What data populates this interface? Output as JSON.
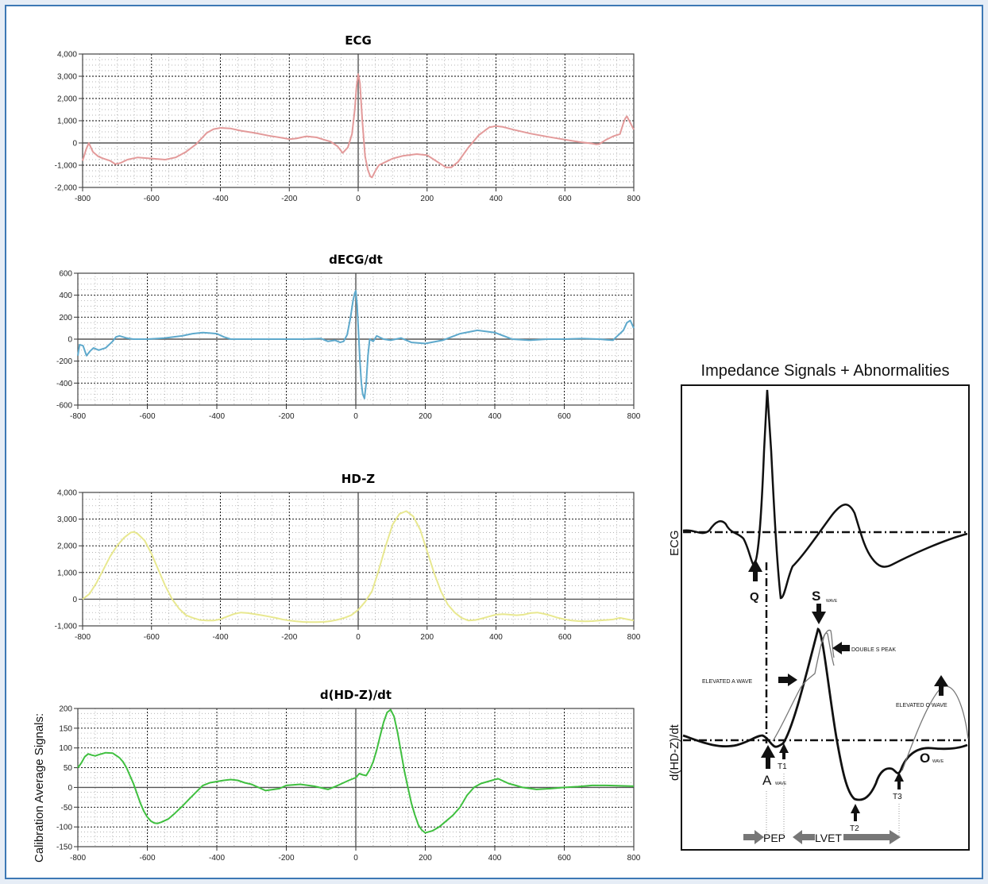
{
  "side_label": "Calibration Average Signals:",
  "colors": {
    "ecg": "#e39a9a",
    "decg": "#5ea9cc",
    "hdz": "#e8e890",
    "dhdz": "#3fbf3f",
    "frame": "#3d78b5"
  },
  "chart_data": [
    {
      "type": "line",
      "title": "ECG",
      "xlim": [
        -800,
        800
      ],
      "ylim": [
        -2000,
        4000
      ],
      "grid": true,
      "xticks": [
        -800,
        -600,
        -400,
        -200,
        0,
        200,
        400,
        600,
        800
      ],
      "xtick_labels": [
        "-800",
        "-600",
        "-400",
        "-200",
        "0",
        "200",
        "400",
        "600",
        "800"
      ],
      "yticks": [
        4000,
        3000,
        2000,
        1000,
        0,
        -1000,
        -2000
      ],
      "ytick_labels": [
        "4,000",
        "3,000",
        "2,000",
        "1,000",
        "0",
        "-1,000",
        "-2,000"
      ],
      "series": [
        {
          "color_key": "ecg",
          "x": [
            -800,
            -790,
            -782,
            -770,
            -755,
            -740,
            -720,
            -705,
            -690,
            -670,
            -640,
            -600,
            -560,
            -530,
            -500,
            -470,
            -440,
            -420,
            -400,
            -370,
            -340,
            -300,
            -260,
            -220,
            -200,
            -180,
            -150,
            -120,
            -100,
            -80,
            -60,
            -45,
            -30,
            -18,
            -10,
            -5,
            0,
            5,
            12,
            20,
            28,
            35,
            40,
            50,
            60,
            80,
            100,
            130,
            170,
            200,
            230,
            255,
            270,
            290,
            320,
            350,
            380,
            400,
            420,
            450,
            500,
            550,
            600,
            640,
            680,
            690,
            700,
            720,
            740,
            760,
            770,
            775,
            780,
            790,
            800
          ],
          "y": [
            -800,
            -300,
            0,
            -400,
            -600,
            -700,
            -800,
            -950,
            -900,
            -750,
            -650,
            -700,
            -750,
            -650,
            -400,
            -50,
            450,
            620,
            680,
            650,
            550,
            450,
            330,
            230,
            170,
            200,
            300,
            250,
            150,
            60,
            -150,
            -450,
            -200,
            400,
            1500,
            2500,
            3100,
            2700,
            1000,
            -600,
            -1200,
            -1500,
            -1550,
            -1250,
            -1000,
            -850,
            -700,
            -580,
            -500,
            -550,
            -850,
            -1100,
            -1100,
            -850,
            -200,
            350,
            700,
            760,
            720,
            600,
            420,
            280,
            150,
            50,
            -30,
            -60,
            -50,
            150,
            300,
            400,
            900,
            1100,
            1200,
            900,
            600
          ]
        }
      ]
    },
    {
      "type": "line",
      "title": "dECG/dt",
      "xlim": [
        -800,
        800
      ],
      "ylim": [
        -600,
        600
      ],
      "grid": true,
      "xticks": [
        -800,
        -600,
        -400,
        -200,
        0,
        200,
        400,
        600,
        800
      ],
      "xtick_labels": [
        "-800",
        "-600",
        "-400",
        "-200",
        "0",
        "200",
        "400",
        "600",
        "800"
      ],
      "yticks": [
        600,
        400,
        200,
        0,
        -200,
        -400,
        -600
      ],
      "ytick_labels": [
        "600",
        "400",
        "200",
        "0",
        "-200",
        "-400",
        "-600"
      ],
      "series": [
        {
          "color_key": "decg",
          "x": [
            -800,
            -795,
            -785,
            -775,
            -765,
            -755,
            -740,
            -720,
            -700,
            -690,
            -680,
            -660,
            -640,
            -600,
            -550,
            -500,
            -470,
            -440,
            -420,
            -400,
            -380,
            -360,
            -300,
            -200,
            -150,
            -100,
            -80,
            -60,
            -45,
            -35,
            -25,
            -15,
            -8,
            -3,
            0,
            4,
            8,
            12,
            16,
            20,
            25,
            30,
            35,
            40,
            50,
            60,
            80,
            100,
            130,
            160,
            200,
            250,
            300,
            350,
            400,
            450,
            500,
            550,
            600,
            650,
            700,
            720,
            740,
            750,
            760,
            770,
            780,
            790,
            800
          ],
          "y": [
            -150,
            -50,
            -60,
            -150,
            -110,
            -80,
            -100,
            -80,
            -20,
            20,
            30,
            10,
            0,
            0,
            10,
            30,
            50,
            60,
            55,
            50,
            20,
            0,
            0,
            0,
            0,
            5,
            -20,
            -10,
            -30,
            -20,
            40,
            200,
            350,
            420,
            440,
            300,
            50,
            -200,
            -400,
            -500,
            -540,
            -400,
            -150,
            0,
            -20,
            30,
            0,
            -10,
            10,
            -30,
            -40,
            -10,
            50,
            80,
            60,
            0,
            -10,
            0,
            0,
            5,
            0,
            -5,
            -10,
            20,
            50,
            80,
            150,
            170,
            100
          ]
        }
      ]
    },
    {
      "type": "line",
      "title": "HD-Z",
      "xlim": [
        -800,
        800
      ],
      "ylim": [
        -1000,
        4000
      ],
      "grid": true,
      "xticks": [
        -800,
        -600,
        -400,
        -200,
        0,
        200,
        400,
        600,
        800
      ],
      "xtick_labels": [
        "-800",
        "-600",
        "-400",
        "-200",
        "0",
        "200",
        "400",
        "600",
        "800"
      ],
      "yticks": [
        4000,
        3000,
        2000,
        1000,
        0,
        -1000
      ],
      "ytick_labels": [
        "4,000",
        "3,000",
        "2,000",
        "1,000",
        "0",
        "-1,000"
      ],
      "series": [
        {
          "color_key": "hdz",
          "x": [
            -800,
            -780,
            -760,
            -740,
            -720,
            -700,
            -680,
            -660,
            -650,
            -640,
            -620,
            -600,
            -580,
            -560,
            -540,
            -520,
            -500,
            -480,
            -460,
            -440,
            -420,
            -400,
            -380,
            -360,
            -340,
            -320,
            -300,
            -280,
            -260,
            -240,
            -220,
            -200,
            -180,
            -160,
            -140,
            -120,
            -100,
            -80,
            -60,
            -40,
            -20,
            0,
            20,
            40,
            60,
            80,
            100,
            120,
            140,
            160,
            180,
            200,
            220,
            240,
            260,
            280,
            300,
            320,
            340,
            360,
            380,
            400,
            420,
            440,
            460,
            480,
            500,
            520,
            540,
            560,
            580,
            600,
            620,
            640,
            660,
            680,
            700,
            720,
            740,
            760,
            780,
            800
          ],
          "y": [
            0,
            200,
            600,
            1100,
            1600,
            2000,
            2300,
            2500,
            2520,
            2450,
            2200,
            1700,
            1100,
            500,
            0,
            -350,
            -600,
            -700,
            -780,
            -800,
            -800,
            -750,
            -650,
            -550,
            -500,
            -520,
            -560,
            -600,
            -650,
            -700,
            -760,
            -800,
            -830,
            -850,
            -860,
            -860,
            -850,
            -820,
            -770,
            -700,
            -600,
            -400,
            -100,
            300,
            1100,
            2000,
            2800,
            3200,
            3300,
            3100,
            2600,
            1800,
            1000,
            300,
            -200,
            -500,
            -700,
            -800,
            -780,
            -720,
            -650,
            -580,
            -560,
            -580,
            -600,
            -580,
            -520,
            -500,
            -550,
            -620,
            -700,
            -760,
            -800,
            -820,
            -830,
            -820,
            -800,
            -780,
            -760,
            -700,
            -750,
            -800
          ]
        }
      ]
    },
    {
      "type": "line",
      "title": "d(HD-Z)/dt",
      "xlim": [
        -800,
        800
      ],
      "ylim": [
        -150,
        200
      ],
      "grid": true,
      "xticks": [
        -800,
        -600,
        -400,
        -200,
        0,
        200,
        400,
        600,
        800
      ],
      "xtick_labels": [
        "-800",
        "-600",
        "-400",
        "-200",
        "0",
        "200",
        "400",
        "600",
        "800"
      ],
      "yticks": [
        200,
        150,
        100,
        50,
        0,
        -50,
        -100,
        -150
      ],
      "ytick_labels": [
        "200",
        "150",
        "100",
        "50",
        "0",
        "-50",
        "-100",
        "-150"
      ],
      "series": [
        {
          "color_key": "dhdz",
          "x": [
            -800,
            -790,
            -780,
            -770,
            -760,
            -750,
            -740,
            -720,
            -700,
            -680,
            -670,
            -660,
            -650,
            -640,
            -630,
            -620,
            -610,
            -600,
            -590,
            -580,
            -570,
            -560,
            -540,
            -520,
            -500,
            -480,
            -460,
            -440,
            -420,
            -400,
            -380,
            -360,
            -340,
            -320,
            -300,
            -260,
            -220,
            -200,
            -160,
            -120,
            -80,
            -60,
            -40,
            -20,
            0,
            10,
            20,
            30,
            40,
            50,
            60,
            70,
            80,
            90,
            100,
            110,
            120,
            130,
            140,
            150,
            160,
            170,
            180,
            190,
            200,
            220,
            240,
            260,
            280,
            300,
            320,
            340,
            360,
            380,
            400,
            410,
            420,
            440,
            460,
            480,
            520,
            560,
            600,
            640,
            680,
            720,
            760,
            800
          ],
          "y": [
            50,
            62,
            78,
            85,
            82,
            80,
            83,
            88,
            87,
            75,
            65,
            50,
            30,
            10,
            -15,
            -40,
            -60,
            -75,
            -85,
            -90,
            -91,
            -88,
            -80,
            -65,
            -48,
            -30,
            -12,
            5,
            12,
            15,
            18,
            20,
            18,
            12,
            8,
            -8,
            -3,
            5,
            8,
            3,
            -5,
            2,
            10,
            18,
            25,
            35,
            32,
            30,
            45,
            65,
            95,
            130,
            165,
            190,
            197,
            180,
            140,
            90,
            40,
            0,
            -40,
            -70,
            -95,
            -108,
            -115,
            -110,
            -100,
            -85,
            -70,
            -50,
            -20,
            0,
            10,
            15,
            20,
            22,
            18,
            10,
            5,
            0,
            -5,
            -3,
            0,
            2,
            5,
            5,
            4,
            3
          ]
        }
      ]
    }
  ],
  "diagram": {
    "title": "Impedance Signals + Abnormalities",
    "ylabel_top": "ECG",
    "ylabel_bottom": "d(HD-Z)/dt",
    "labels": {
      "q": "Q",
      "s": "S",
      "s_sub": "WAVE",
      "double_s": "DOUBLE S PEAK",
      "elevated_a": "ELEVATED A WAVE",
      "elevated_o": "ELEVATED O WAVE",
      "o": "O",
      "o_sub": "WAVE",
      "a": "A",
      "a_sub": "WAVE",
      "t1": "T1",
      "t2": "T2",
      "t3": "T3",
      "pep": "PEP",
      "lvet": "LVET"
    }
  }
}
